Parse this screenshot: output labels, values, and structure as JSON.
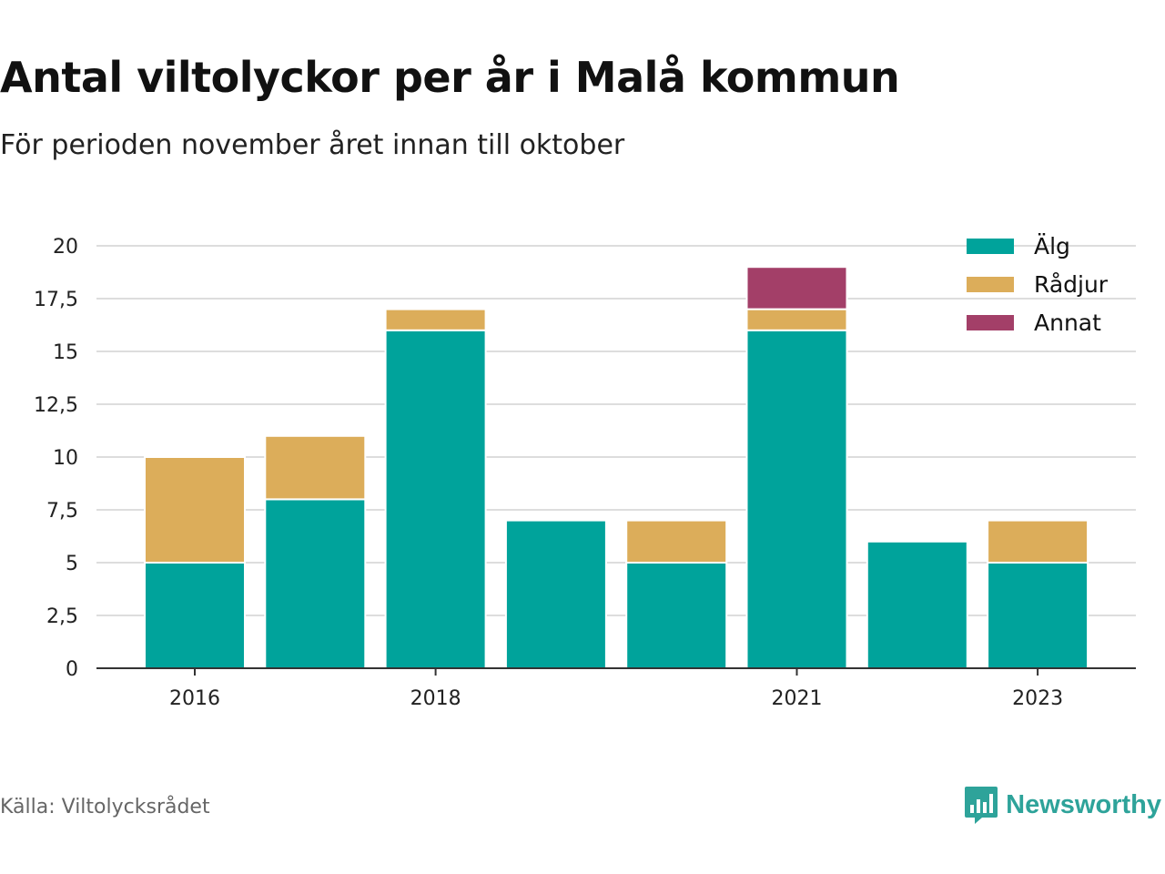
{
  "title": "Antal viltolyckor per år i Malå kommun",
  "subtitle": "För perioden november året innan till oktober",
  "source": "Källa: Viltolycksrådet",
  "brand": {
    "name": "Newsworthy",
    "logo_icon": "bar-chart-speech-bubble-icon"
  },
  "colors": {
    "alg": "#00a39b",
    "radjur": "#dcad5a",
    "annat": "#a33f68",
    "grid": "#dddddd",
    "axis": "#333333"
  },
  "chart_data": {
    "type": "bar",
    "stacked": true,
    "categories": [
      2016,
      2017,
      2018,
      2019,
      2020,
      2021,
      2022,
      2023
    ],
    "x_tick_labels": [
      "2016",
      "2018",
      "2021",
      "2023"
    ],
    "series": [
      {
        "name": "Älg",
        "color": "#00a39b",
        "values": [
          5,
          8,
          16,
          7,
          5,
          16,
          6,
          5
        ]
      },
      {
        "name": "Rådjur",
        "color": "#dcad5a",
        "values": [
          5,
          3,
          1,
          0,
          2,
          1,
          0,
          2
        ]
      },
      {
        "name": "Annat",
        "color": "#a33f68",
        "values": [
          0,
          0,
          0,
          0,
          0,
          2,
          0,
          0
        ]
      }
    ],
    "y_ticks": [
      "0",
      "2,5",
      "5",
      "7,5",
      "10",
      "12,5",
      "15",
      "17,5",
      "20"
    ],
    "ylim": [
      0,
      20
    ],
    "grid": true,
    "legend_position": "top-right"
  }
}
